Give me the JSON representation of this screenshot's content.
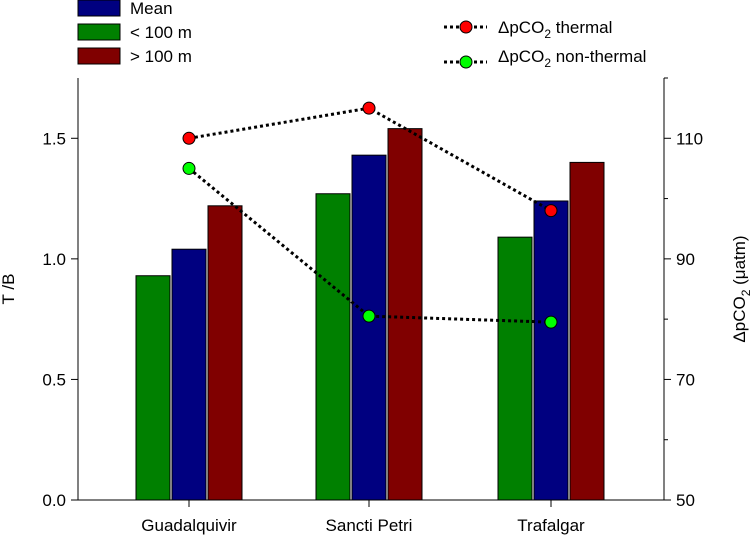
{
  "chart_data": {
    "type": "bar",
    "categories": [
      "Guadalquivir",
      "Sancti Petri",
      "Trafalgar"
    ],
    "series": [
      {
        "name": "< 100 m",
        "color": "#008000",
        "values": [
          0.93,
          1.27,
          1.09
        ]
      },
      {
        "name": "Mean",
        "color": "#000080",
        "values": [
          1.04,
          1.43,
          1.24
        ]
      },
      {
        "name": "> 100 m",
        "color": "#800000",
        "values": [
          1.22,
          1.54,
          1.4
        ]
      }
    ],
    "line_series": [
      {
        "name": "ΔpCO",
        "subscript": "2",
        "suffix": " thermal",
        "color": "#ff0000",
        "values": [
          110,
          115,
          98
        ]
      },
      {
        "name": "ΔpCO",
        "subscript": "2",
        "suffix": " non-thermal",
        "color": "#00ff00",
        "values": [
          105,
          80.5,
          79.5
        ]
      }
    ],
    "ylabel": "T /B",
    "ylim": [
      0,
      1.75
    ],
    "yticks": [
      "0.0",
      "0.5",
      "1.0",
      "1.5"
    ],
    "y2label_main": "ΔpCO",
    "y2label_sub": "2",
    "y2label_suffix": " (μatm)",
    "y2lim": [
      50,
      120
    ],
    "y2ticks": [
      "50",
      "70",
      "90",
      "110"
    ],
    "legend_bars": [
      "Mean",
      "< 100 m",
      "> 100 m"
    ],
    "legend_bar_colors": [
      "#000080",
      "#008000",
      "#800000"
    ],
    "legend_position": "top"
  }
}
